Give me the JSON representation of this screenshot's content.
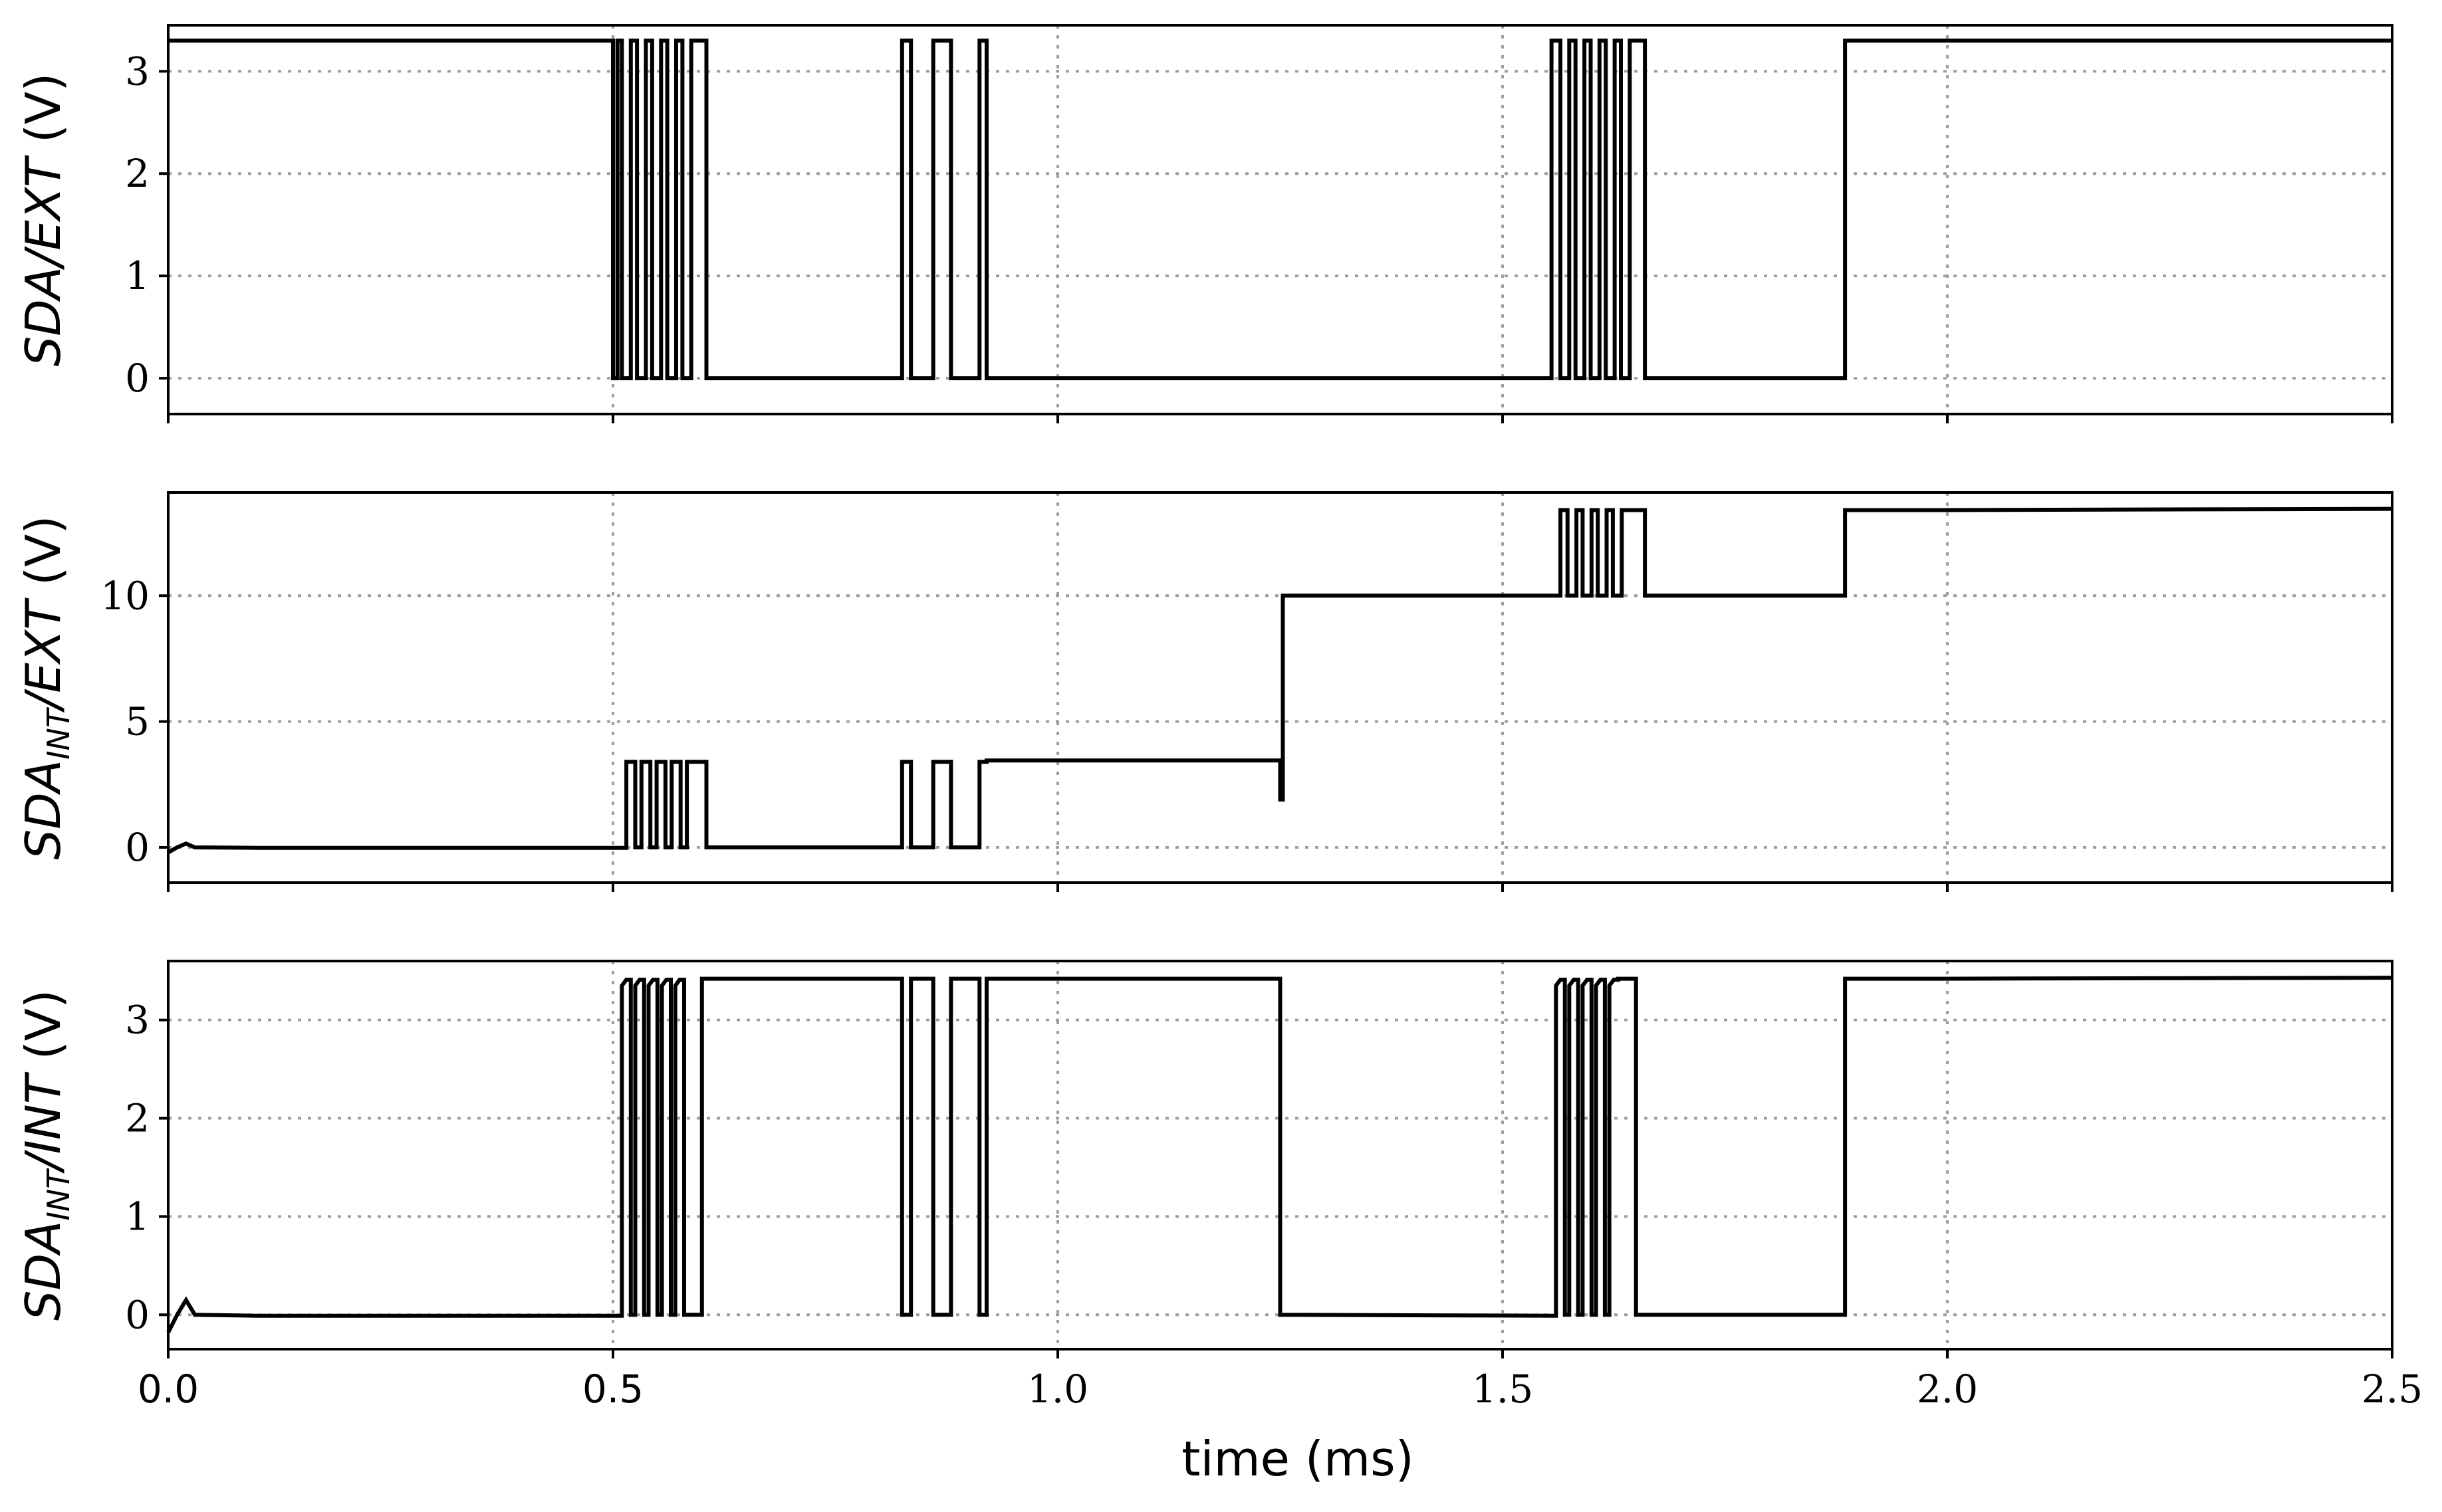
{
  "chart_data": [
    {
      "type": "line",
      "ylabel": {
        "pre": "",
        "main": "SDA",
        "sub": "",
        "post": "/EXT",
        "units": " (V)"
      },
      "xlim": [
        0,
        2.5
      ],
      "ylim": [
        -0.35,
        3.45
      ],
      "yticks": [
        0,
        1,
        2,
        3
      ],
      "ytick_labels": [
        "0",
        "1",
        "2",
        "3"
      ],
      "grid": true,
      "series": [
        {
          "x": [
            0,
            0.5,
            0.5,
            0.505,
            0.505,
            0.51,
            0.51,
            0.52,
            0.52,
            0.527,
            0.527,
            0.537,
            0.537,
            0.544,
            0.544,
            0.554,
            0.554,
            0.561,
            0.561,
            0.571,
            0.571,
            0.578,
            0.578,
            0.588,
            0.588,
            0.605,
            0.605,
            0.825,
            0.825,
            0.835,
            0.835,
            0.86,
            0.86,
            0.88,
            0.88,
            0.912,
            0.912,
            0.92,
            0.92,
            1.555,
            1.555,
            1.565,
            1.565,
            1.575,
            1.575,
            1.582,
            1.582,
            1.592,
            1.592,
            1.599,
            1.599,
            1.609,
            1.609,
            1.616,
            1.616,
            1.626,
            1.626,
            1.633,
            1.633,
            1.643,
            1.643,
            1.66,
            1.66,
            1.885,
            1.885,
            1.985,
            1.985,
            2.5
          ],
          "y": [
            3.3,
            3.3,
            0,
            0,
            3.3,
            3.3,
            0,
            0,
            3.3,
            3.3,
            0,
            0,
            3.3,
            3.3,
            0,
            0,
            3.3,
            3.3,
            0,
            0,
            3.3,
            3.3,
            0,
            0,
            3.3,
            3.3,
            0,
            0,
            3.3,
            3.3,
            0,
            0,
            3.3,
            3.3,
            0,
            0,
            3.3,
            3.3,
            0,
            0,
            3.3,
            3.3,
            0,
            0,
            3.3,
            3.3,
            0,
            0,
            3.3,
            3.3,
            0,
            0,
            3.3,
            3.3,
            0,
            0,
            3.3,
            3.3,
            0,
            0,
            3.3,
            3.3,
            0,
            0,
            3.3,
            3.3,
            3.3,
            3.3
          ]
        }
      ]
    },
    {
      "type": "line",
      "ylabel": {
        "pre": "",
        "main": "SDA",
        "sub": "INT",
        "post": "/EXT",
        "units": " (V)"
      },
      "xlim": [
        0,
        2.5
      ],
      "ylim": [
        -1.4,
        14.1
      ],
      "yticks": [
        0,
        5,
        10
      ],
      "ytick_labels": [
        "0",
        "5",
        "10"
      ],
      "grid": true,
      "series": [
        {
          "x": [
            0,
            0.01,
            0.02,
            0.03,
            0.1,
            0.515,
            0.515,
            0.525,
            0.525,
            0.532,
            0.532,
            0.542,
            0.542,
            0.549,
            0.549,
            0.559,
            0.559,
            0.566,
            0.566,
            0.576,
            0.576,
            0.583,
            0.583,
            0.605,
            0.605,
            0.825,
            0.825,
            0.835,
            0.835,
            0.86,
            0.86,
            0.88,
            0.88,
            0.912,
            0.912,
            0.92,
            0.92,
            1.25,
            1.25,
            1.253,
            1.253,
            1.565,
            1.565,
            1.573,
            1.573,
            1.583,
            1.583,
            1.59,
            1.59,
            1.6,
            1.6,
            1.607,
            1.607,
            1.617,
            1.617,
            1.624,
            1.624,
            1.634,
            1.634,
            1.641,
            1.641,
            1.66,
            1.66,
            1.885,
            1.885,
            1.985,
            1.985,
            2.5
          ],
          "y": [
            -0.2,
            0.0,
            0.15,
            0.0,
            -0.02,
            -0.02,
            3.4,
            3.4,
            0,
            0,
            3.4,
            3.4,
            0,
            0,
            3.4,
            3.4,
            0,
            0,
            3.4,
            3.4,
            0,
            0,
            3.4,
            3.4,
            0,
            0,
            3.4,
            3.4,
            0,
            0,
            3.4,
            3.4,
            0,
            0,
            3.4,
            3.4,
            3.45,
            3.45,
            1.9,
            1.9,
            10.0,
            10.0,
            13.4,
            13.4,
            10.0,
            10.0,
            13.4,
            13.4,
            10.0,
            10.0,
            13.4,
            13.4,
            10.0,
            10.0,
            13.4,
            13.4,
            10.0,
            10.0,
            13.4,
            13.4,
            13.4,
            13.4,
            10.0,
            10.0,
            13.4,
            13.4,
            13.4,
            13.45
          ]
        }
      ]
    },
    {
      "type": "line",
      "ylabel": {
        "pre": "",
        "main": "SDA",
        "sub": "INT",
        "post": "/INT",
        "units": " (V)"
      },
      "xlim": [
        0,
        2.5
      ],
      "ylim": [
        -0.35,
        3.6
      ],
      "yticks": [
        0,
        1,
        2,
        3
      ],
      "ytick_labels": [
        "0",
        "1",
        "2",
        "3"
      ],
      "grid": true,
      "series": [
        {
          "x": [
            0,
            0.01,
            0.02,
            0.03,
            0.1,
            0.51,
            0.51,
            0.515,
            0.52,
            0.52,
            0.525,
            0.525,
            0.53,
            0.535,
            0.535,
            0.54,
            0.54,
            0.545,
            0.55,
            0.55,
            0.555,
            0.555,
            0.56,
            0.565,
            0.565,
            0.57,
            0.57,
            0.575,
            0.58,
            0.58,
            0.6,
            0.6,
            0.825,
            0.825,
            0.835,
            0.835,
            0.86,
            0.86,
            0.88,
            0.88,
            0.912,
            0.912,
            0.92,
            0.92,
            1.25,
            1.25,
            1.56,
            1.56,
            1.565,
            1.57,
            1.57,
            1.575,
            1.575,
            1.58,
            1.585,
            1.585,
            1.59,
            1.59,
            1.595,
            1.6,
            1.6,
            1.605,
            1.605,
            1.61,
            1.615,
            1.615,
            1.62,
            1.62,
            1.625,
            1.63,
            1.63,
            1.65,
            1.65,
            1.885,
            1.885,
            1.985,
            1.985,
            2.5
          ],
          "y": [
            -0.18,
            0.0,
            0.15,
            0.0,
            -0.01,
            -0.01,
            3.35,
            3.41,
            3.41,
            0,
            0,
            3.35,
            3.41,
            3.41,
            0,
            0,
            3.35,
            3.41,
            3.41,
            0,
            0,
            3.35,
            3.41,
            3.41,
            0,
            0,
            3.35,
            3.41,
            3.41,
            0,
            0,
            3.42,
            3.42,
            0,
            0,
            3.42,
            3.42,
            0,
            0,
            3.42,
            3.42,
            0,
            0,
            3.42,
            3.42,
            0.0,
            -0.01,
            3.35,
            3.41,
            3.41,
            0,
            0,
            3.35,
            3.41,
            3.41,
            0,
            0,
            3.35,
            3.41,
            3.41,
            0,
            0,
            3.35,
            3.41,
            3.41,
            0,
            0,
            3.35,
            3.41,
            3.41,
            3.42,
            3.42,
            0,
            0,
            3.42,
            3.42,
            3.42,
            3.43
          ]
        }
      ]
    }
  ],
  "x_axis": {
    "label": "time (ms)",
    "ticks": [
      0.0,
      0.5,
      1.0,
      1.5,
      2.0,
      2.5
    ],
    "tick_labels": [
      "0.0",
      "0.5",
      "1.0",
      "1.5",
      "2.0",
      "2.5"
    ],
    "sans_tick_indices": [
      0,
      1
    ]
  }
}
